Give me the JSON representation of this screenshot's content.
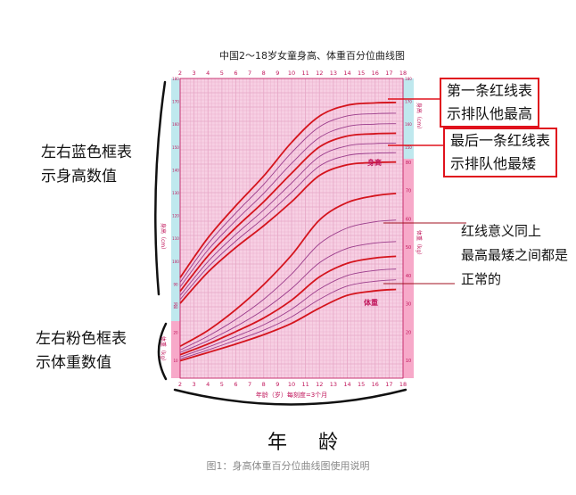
{
  "page": {
    "chart_title": "中国2～18岁女童身高、体重百分位曲线图",
    "annotations": {
      "left_blue": [
        "左右蓝色框表",
        "示身高数值"
      ],
      "left_pink": [
        "左右粉色框表",
        "示体重数值"
      ],
      "right_top": [
        "第一条红线表",
        "示排队他最高"
      ],
      "right_mid": [
        "最后一条红线表",
        "示排队他最矮"
      ],
      "right_low": [
        "红线意义同上",
        "最高最矮之间都是",
        "正常的"
      ]
    },
    "bottom_label": "年 龄",
    "caption": "图1：身高体重百分位曲线图使用说明",
    "inner_labels": {
      "height_curves": "身高",
      "weight_curves": "体重",
      "height_axis_left": "身高（cm）",
      "height_axis_right": "身高（cm）",
      "weight_axis_left": "体重（kg）",
      "weight_axis_right": "体重（kg）",
      "x_axis": "年龄（岁）每刻度=3个月"
    }
  },
  "colors": {
    "grid_bg": "#f7cfe3",
    "grid_line": "#e6a6c6",
    "blue_panel": "#bfe8ee",
    "pink_panel": "#f7a9c9",
    "red_curve": "#d4141d",
    "purple_curve": "#9b3d8c",
    "annotation_red": "#e0121d"
  },
  "chart_data": {
    "type": "line",
    "title": "中国2～18岁女童身高、体重百分位曲线图",
    "xlabel": "年龄（岁）每刻度=3个月",
    "x_ticks": [
      2,
      3,
      4,
      5,
      6,
      7,
      8,
      9,
      10,
      11,
      12,
      13,
      14,
      15,
      16,
      17,
      18
    ],
    "xlim": [
      2,
      18
    ],
    "height_panel": {
      "ylabel": "身高（cm）",
      "ylim": [
        80,
        180
      ],
      "y_ticks": [
        80,
        90,
        100,
        110,
        120,
        130,
        140,
        150,
        160,
        170,
        180
      ],
      "x": [
        2,
        4,
        6,
        8,
        10,
        12,
        14,
        16,
        17.5
      ],
      "series": [
        {
          "color": "red",
          "values": [
            92.8,
            110.2,
            124.3,
            137.3,
            152,
            163.5,
            168.3,
            169.3,
            169.5
          ]
        },
        {
          "color": "purple",
          "values": [
            90.7,
            107.6,
            121.1,
            133.6,
            147.5,
            158.8,
            163.6,
            164.6,
            164.8
          ]
        },
        {
          "color": "purple",
          "values": [
            88.7,
            104.9,
            117.8,
            129.7,
            142.8,
            154.1,
            159.0,
            160.0,
            160.2
          ]
        },
        {
          "color": "red",
          "values": [
            86.8,
            102.3,
            114.7,
            126.0,
            138.5,
            150.0,
            154.8,
            155.8,
            156.0
          ]
        },
        {
          "color": "purple",
          "values": [
            84.9,
            99.8,
            111.7,
            122.4,
            134.2,
            145.8,
            150.5,
            151.5,
            151.7
          ]
        },
        {
          "color": "purple",
          "values": [
            83.2,
            97.4,
            108.8,
            118.9,
            130.1,
            141.6,
            146.3,
            147.3,
            147.5
          ]
        },
        {
          "color": "red",
          "values": [
            81.5,
            95.2,
            106.0,
            115.5,
            126.0,
            137.5,
            142.2,
            143.2,
            143.4
          ]
        }
      ]
    },
    "weight_panel": {
      "ylabel": "体重（kg）",
      "ylim": [
        5,
        80
      ],
      "y_ticks": [
        10,
        20,
        30,
        40,
        50,
        60,
        70,
        80
      ],
      "x": [
        2,
        4,
        6,
        8,
        10,
        12,
        14,
        16,
        17.5
      ],
      "series": [
        {
          "color": "red",
          "values": [
            15.0,
            20.6,
            28.0,
            36.8,
            47.2,
            59.6,
            65.8,
            68.2,
            69.0
          ]
        },
        {
          "color": "purple",
          "values": [
            13.7,
            18.6,
            24.5,
            31.6,
            40.5,
            51.2,
            56.8,
            59.0,
            59.6
          ]
        },
        {
          "color": "purple",
          "values": [
            12.8,
            17.0,
            22.0,
            27.9,
            35.4,
            44.5,
            49.6,
            51.5,
            52.0
          ]
        },
        {
          "color": "red",
          "values": [
            12.0,
            15.8,
            20.2,
            25.0,
            31.3,
            39.5,
            44.3,
            46.2,
            46.8
          ]
        },
        {
          "color": "purple",
          "values": [
            11.2,
            14.7,
            18.5,
            22.6,
            28.1,
            35.2,
            40.0,
            41.8,
            42.3
          ]
        },
        {
          "color": "purple",
          "values": [
            10.5,
            13.7,
            17.1,
            20.7,
            25.4,
            31.6,
            36.3,
            38.0,
            38.5
          ]
        },
        {
          "color": "red",
          "values": [
            9.9,
            12.8,
            15.8,
            19.1,
            23.1,
            28.5,
            33.0,
            34.6,
            35.1
          ]
        }
      ]
    },
    "grid": true
  }
}
